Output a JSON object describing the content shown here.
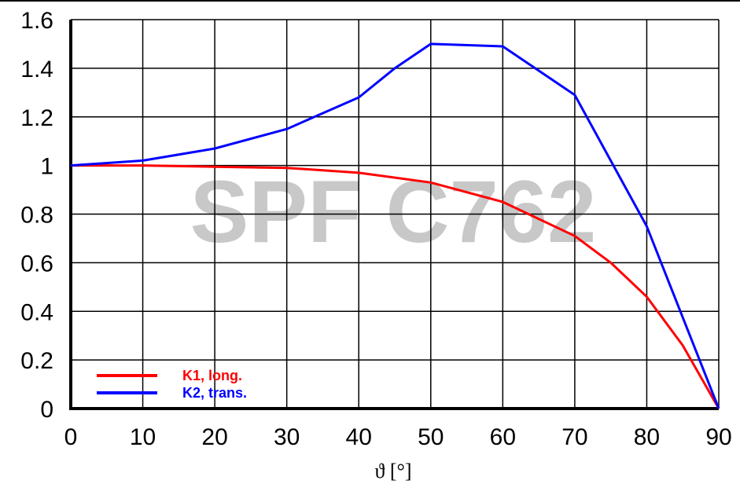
{
  "chart_data": {
    "type": "line",
    "xlabel": "ϑ [°]",
    "ylabel": "",
    "xlim": [
      0,
      90
    ],
    "ylim": [
      0,
      1.6
    ],
    "x_ticks": [
      "0",
      "10",
      "20",
      "30",
      "40",
      "50",
      "60",
      "70",
      "80",
      "90"
    ],
    "y_ticks": [
      "0",
      "0.2",
      "0.4",
      "0.6",
      "0.8",
      "1",
      "1.2",
      "1.4",
      "1.6"
    ],
    "grid": true,
    "legend_position": "bottom-left",
    "watermark": "SPF C762",
    "series": [
      {
        "name": "K1, long.",
        "color": "#ff0000",
        "x": [
          0,
          10,
          20,
          30,
          40,
          50,
          60,
          70,
          75,
          80,
          85,
          90
        ],
        "y": [
          1.0,
          1.0,
          0.995,
          0.99,
          0.97,
          0.93,
          0.85,
          0.71,
          0.6,
          0.46,
          0.26,
          0.0
        ]
      },
      {
        "name": "K2, trans.",
        "color": "#0000ff",
        "x": [
          0,
          10,
          20,
          30,
          40,
          45,
          50,
          60,
          70,
          80,
          90
        ],
        "y": [
          1.0,
          1.02,
          1.07,
          1.15,
          1.28,
          1.4,
          1.5,
          1.49,
          1.29,
          0.75,
          0.0
        ]
      }
    ]
  }
}
